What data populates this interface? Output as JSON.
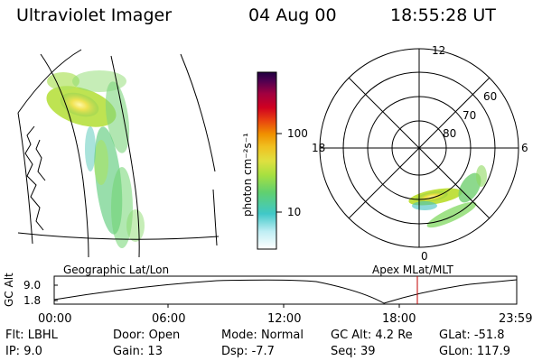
{
  "header": {
    "title": "Ultraviolet Imager",
    "date": "04 Aug 00",
    "time": "18:55:28 UT"
  },
  "colorbar": {
    "unit_label": "photon cm⁻²s⁻¹",
    "ticks": [
      "100",
      "10"
    ],
    "colors": [
      "#ffffff",
      "#7fe0f0",
      "#40c8c8",
      "#80e060",
      "#c8e020",
      "#e8e040",
      "#f0c020",
      "#f09000",
      "#e84010",
      "#d00020",
      "#a00040",
      "#600060",
      "#200040"
    ]
  },
  "geographic_panel": {
    "label": "Geographic Lat/Lon"
  },
  "polar_plot": {
    "label": "Apex MLat/MLT",
    "mlt_labels": {
      "top": "12",
      "left": "18",
      "right": "6",
      "bottom": "0"
    },
    "lat_labels": [
      "60",
      "70",
      "80"
    ]
  },
  "timeline": {
    "axis_label": "GC Alt",
    "y_ticks": [
      "9.0",
      "1.8"
    ],
    "x_ticks": [
      "00:00",
      "06:00",
      "12:00",
      "18:00",
      "23:59"
    ],
    "current_time_marker": "18:55",
    "marker_color": "#c00000"
  },
  "info": {
    "flt_label": "Flt:",
    "flt_value": "LBHL",
    "ip_label": "IP:",
    "ip_value": "9.0",
    "door_label": "Door:",
    "door_value": "Open",
    "gain_label": "Gain:",
    "gain_value": "13",
    "mode_label": "Mode:",
    "mode_value": "Normal",
    "dsp_label": "Dsp:",
    "dsp_value": "-7.7",
    "gcalt_label": "GC Alt:",
    "gcalt_value": "4.2 Re",
    "seq_label": "Seq:",
    "seq_value": "39",
    "glat_label": "GLat:",
    "glat_value": "-51.8",
    "glon_label": "GLon:",
    "glon_value": "117.9"
  }
}
